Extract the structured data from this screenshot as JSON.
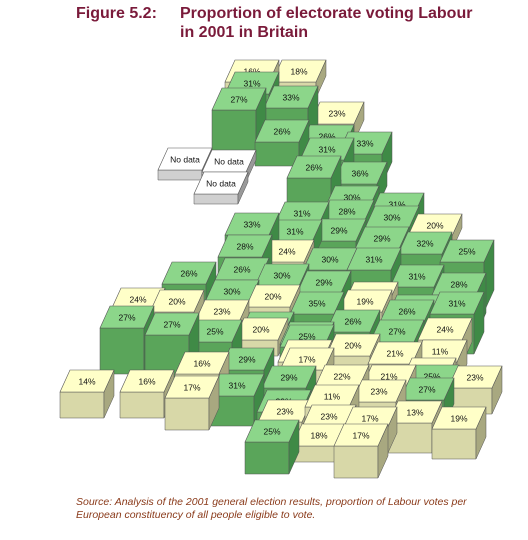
{
  "figure": {
    "number": "Figure 5.2:",
    "title_line1": "Proportion of electorate voting Labour",
    "title_line2": "in 2001 in Britain"
  },
  "source_note": "Source: Analysis of the 2001 general election results, proportion of Labour votes per European constituency of all people eligible to vote.",
  "colors": {
    "high_top": "#8cd68a",
    "high_left": "#5aa55a",
    "high_right": "#3f8a46",
    "low_top": "#ffffc8",
    "low_left": "#d8d8a8",
    "low_right": "#a8a880",
    "nodata_top": "#ffffff",
    "nodata_left": "#d0d0d0",
    "nodata_right": "#999999",
    "title": "#7a1a3a",
    "source": "#8a3a1a"
  },
  "threshold_percent": 25,
  "cells": [
    {
      "label": "16%",
      "value": 16
    },
    {
      "label": "18%",
      "value": 18
    },
    {
      "label": "31%",
      "value": 31
    },
    {
      "label": "27%",
      "value": 27
    },
    {
      "label": "33%",
      "value": 33
    },
    {
      "label": "23%",
      "value": 23
    },
    {
      "label": "26%",
      "value": 26
    },
    {
      "label": "26%",
      "value": 26
    },
    {
      "label": "33%",
      "value": 33
    },
    {
      "label": "No data",
      "value": null
    },
    {
      "label": "No data",
      "value": null
    },
    {
      "label": "No data",
      "value": null
    },
    {
      "label": "31%",
      "value": 31
    },
    {
      "label": "26%",
      "value": 26
    },
    {
      "label": "36%",
      "value": 36
    },
    {
      "label": "25%",
      "value": 25
    },
    {
      "label": "30%",
      "value": 30
    },
    {
      "label": "31%",
      "value": 31
    },
    {
      "label": "31%",
      "value": 31
    },
    {
      "label": "28%",
      "value": 28
    },
    {
      "label": "30%",
      "value": 30
    },
    {
      "label": "20%",
      "value": 20
    },
    {
      "label": "33%",
      "value": 33
    },
    {
      "label": "31%",
      "value": 31
    },
    {
      "label": "29%",
      "value": 29
    },
    {
      "label": "29%",
      "value": 29
    },
    {
      "label": "32%",
      "value": 32
    },
    {
      "label": "25%",
      "value": 25
    },
    {
      "label": "28%",
      "value": 28
    },
    {
      "label": "24%",
      "value": 24
    },
    {
      "label": "30%",
      "value": 30
    },
    {
      "label": "31%",
      "value": 31
    },
    {
      "label": "31%",
      "value": 31
    },
    {
      "label": "28%",
      "value": 28
    },
    {
      "label": "26%",
      "value": 26
    },
    {
      "label": "30%",
      "value": 30
    },
    {
      "label": "29%",
      "value": 29
    },
    {
      "label": "24%",
      "value": 24
    },
    {
      "label": "28%",
      "value": 28
    },
    {
      "label": "31%",
      "value": 31
    },
    {
      "label": "26%",
      "value": 26
    },
    {
      "label": "30%",
      "value": 30
    },
    {
      "label": "20%",
      "value": 20
    },
    {
      "label": "35%",
      "value": 35
    },
    {
      "label": "19%",
      "value": 19
    },
    {
      "label": "26%",
      "value": 26
    },
    {
      "label": "29%",
      "value": 29
    },
    {
      "label": "24%",
      "value": 24
    },
    {
      "label": "20%",
      "value": 20
    },
    {
      "label": "23%",
      "value": 23
    },
    {
      "label": "33%",
      "value": 33
    },
    {
      "label": "33%",
      "value": 33
    },
    {
      "label": "26%",
      "value": 26
    },
    {
      "label": "27%",
      "value": 27
    },
    {
      "label": "24%",
      "value": 24
    },
    {
      "label": "27%",
      "value": 27
    },
    {
      "label": "27%",
      "value": 27
    },
    {
      "label": "25%",
      "value": 25
    },
    {
      "label": "20%",
      "value": 20
    },
    {
      "label": "25%",
      "value": 25
    },
    {
      "label": "20%",
      "value": 20
    },
    {
      "label": "21%",
      "value": 21
    },
    {
      "label": "11%",
      "value": 11
    },
    {
      "label": "20%",
      "value": 20
    },
    {
      "label": "16%",
      "value": 16
    },
    {
      "label": "29%",
      "value": 29
    },
    {
      "label": "17%",
      "value": 17
    },
    {
      "label": "13%",
      "value": 13
    },
    {
      "label": "14%",
      "value": 14
    },
    {
      "label": "16%",
      "value": 16
    },
    {
      "label": "17%",
      "value": 17
    },
    {
      "label": "31%",
      "value": 31
    },
    {
      "label": "29%",
      "value": 29
    },
    {
      "label": "22%",
      "value": 22
    },
    {
      "label": "21%",
      "value": 21
    },
    {
      "label": "25%",
      "value": 25
    },
    {
      "label": "23%",
      "value": 23
    },
    {
      "label": "29%",
      "value": 29
    },
    {
      "label": "11%",
      "value": 11
    },
    {
      "label": "23%",
      "value": 23
    },
    {
      "label": "27%",
      "value": 27
    },
    {
      "label": "23%",
      "value": 23
    },
    {
      "label": "23%",
      "value": 23
    },
    {
      "label": "17%",
      "value": 17
    },
    {
      "label": "13%",
      "value": 13
    },
    {
      "label": "19%",
      "value": 19
    },
    {
      "label": "25%",
      "value": 25
    },
    {
      "label": "18%",
      "value": 18
    },
    {
      "label": "17%",
      "value": 17
    }
  ]
}
